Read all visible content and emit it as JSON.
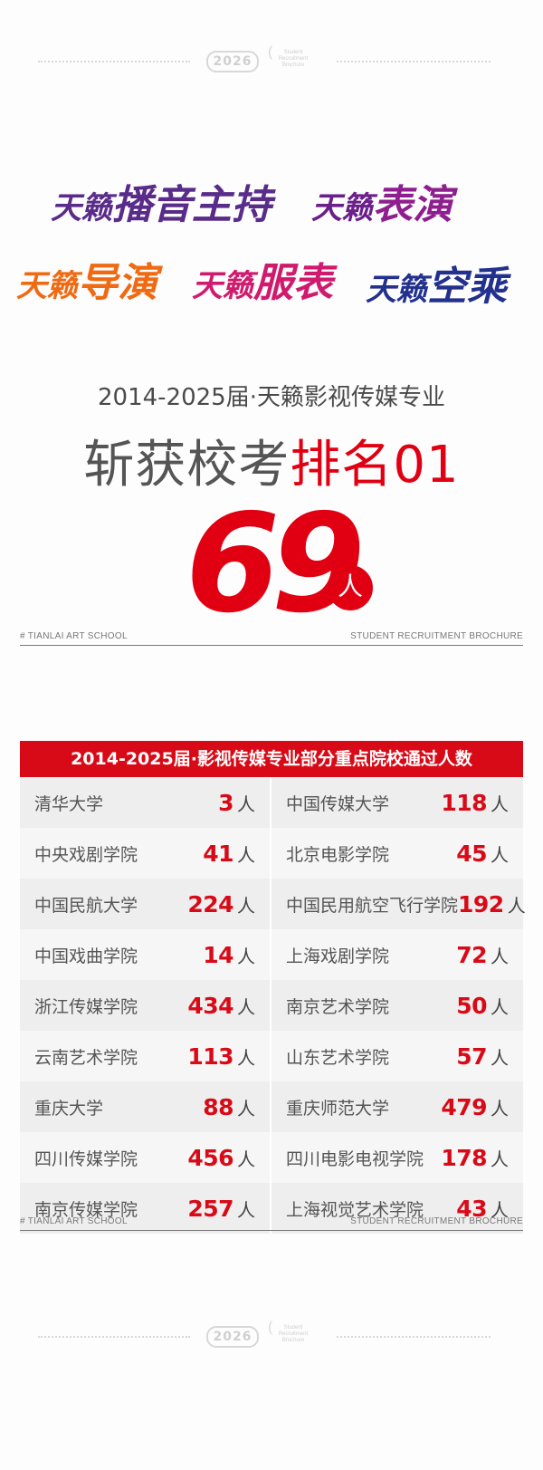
{
  "header": {
    "year": "2026",
    "tag_lines": [
      "Student",
      "Recruitment",
      "Brochure"
    ]
  },
  "logos": [
    {
      "brand": "天籁",
      "major": "播音主持",
      "color": "#5a2c8a",
      "accent": "#e2007a"
    },
    {
      "brand": "天籁",
      "major": "表演",
      "color": "#6a1f8a",
      "accent": "#a0208a"
    },
    {
      "brand": "天籁",
      "major": "导演",
      "color": "#ef6a12",
      "accent": "#ef6a12"
    },
    {
      "brand": "天籁",
      "major": "服表",
      "color": "#d01a6e",
      "accent": "#d01a6e"
    },
    {
      "brand": "天籁",
      "major": "空乘",
      "color": "#23318e",
      "accent": "#1f87d0"
    }
  ],
  "intro": {
    "subtitle": "2014-2025届·天籁影视传媒专业"
  },
  "headline": {
    "prefix": "斩获校考",
    "highlight": "排名01",
    "count": "69",
    "unit": "人"
  },
  "footer_labels": {
    "left": "# TIANLAI ART SCHOOL",
    "right": "STUDENT RECRUITMENT BROCHURE"
  },
  "table": {
    "title": "2014-2025届·影视传媒专业部分重点院校通过人数",
    "unit": "人",
    "rows": [
      [
        {
          "school": "清华大学",
          "count": "3"
        },
        {
          "school": "中国传媒大学",
          "count": "118"
        }
      ],
      [
        {
          "school": "中央戏剧学院",
          "count": "41"
        },
        {
          "school": "北京电影学院",
          "count": "45"
        }
      ],
      [
        {
          "school": "中国民航大学",
          "count": "224"
        },
        {
          "school": "中国民用航空飞行学院",
          "count": "192"
        }
      ],
      [
        {
          "school": "中国戏曲学院",
          "count": "14"
        },
        {
          "school": "上海戏剧学院",
          "count": "72"
        }
      ],
      [
        {
          "school": "浙江传媒学院",
          "count": "434"
        },
        {
          "school": "南京艺术学院",
          "count": "50"
        }
      ],
      [
        {
          "school": "云南艺术学院",
          "count": "113"
        },
        {
          "school": "山东艺术学院",
          "count": "57"
        }
      ],
      [
        {
          "school": "重庆大学",
          "count": "88"
        },
        {
          "school": "重庆师范大学",
          "count": "479"
        }
      ],
      [
        {
          "school": "四川传媒学院",
          "count": "456"
        },
        {
          "school": "四川电影电视学院",
          "count": "178"
        }
      ],
      [
        {
          "school": "南京传媒学院",
          "count": "257"
        },
        {
          "school": "上海视觉艺术学院",
          "count": "43"
        }
      ]
    ]
  }
}
